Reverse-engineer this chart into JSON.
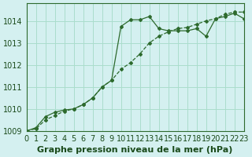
{
  "title": "Graphe pression niveau de la mer (hPa)",
  "bg_color": "#d4f0f0",
  "grid_color": "#aaddcc",
  "line_color": "#2d6a2d",
  "xlim": [
    0,
    23
  ],
  "ylim": [
    1009.0,
    1014.8
  ],
  "yticks": [
    1009,
    1010,
    1011,
    1012,
    1013,
    1014
  ],
  "xticks": [
    0,
    1,
    2,
    3,
    4,
    5,
    6,
    7,
    8,
    9,
    10,
    11,
    12,
    13,
    14,
    15,
    16,
    17,
    18,
    19,
    20,
    21,
    22,
    23
  ],
  "series1_x": [
    0,
    1,
    2,
    3,
    4,
    5,
    6,
    7,
    8,
    9,
    10,
    11,
    12,
    13,
    14,
    15,
    16,
    17,
    18,
    19,
    20,
    21,
    22,
    23
  ],
  "series1_y": [
    1009.0,
    1009.15,
    1009.65,
    1009.85,
    1009.95,
    1010.0,
    1010.2,
    1010.5,
    1011.0,
    1011.3,
    1013.75,
    1014.05,
    1014.05,
    1014.2,
    1013.65,
    1013.55,
    1013.55,
    1013.55,
    1013.65,
    1013.3,
    1014.1,
    1014.2,
    1014.35,
    1014.1
  ],
  "series2_x": [
    0,
    1,
    2,
    3,
    4,
    5,
    6,
    7,
    8,
    9,
    10,
    11,
    12,
    13,
    14,
    15,
    16,
    17,
    18,
    19,
    20,
    21,
    22,
    23
  ],
  "series2_y": [
    1009.0,
    1009.1,
    1009.5,
    1009.7,
    1009.9,
    1010.0,
    1010.2,
    1010.5,
    1011.0,
    1011.3,
    1011.8,
    1012.1,
    1012.5,
    1013.0,
    1013.3,
    1013.5,
    1013.65,
    1013.7,
    1013.85,
    1014.0,
    1014.1,
    1014.3,
    1014.4,
    1014.4
  ],
  "tick_fontsize": 7,
  "title_fontsize": 8
}
